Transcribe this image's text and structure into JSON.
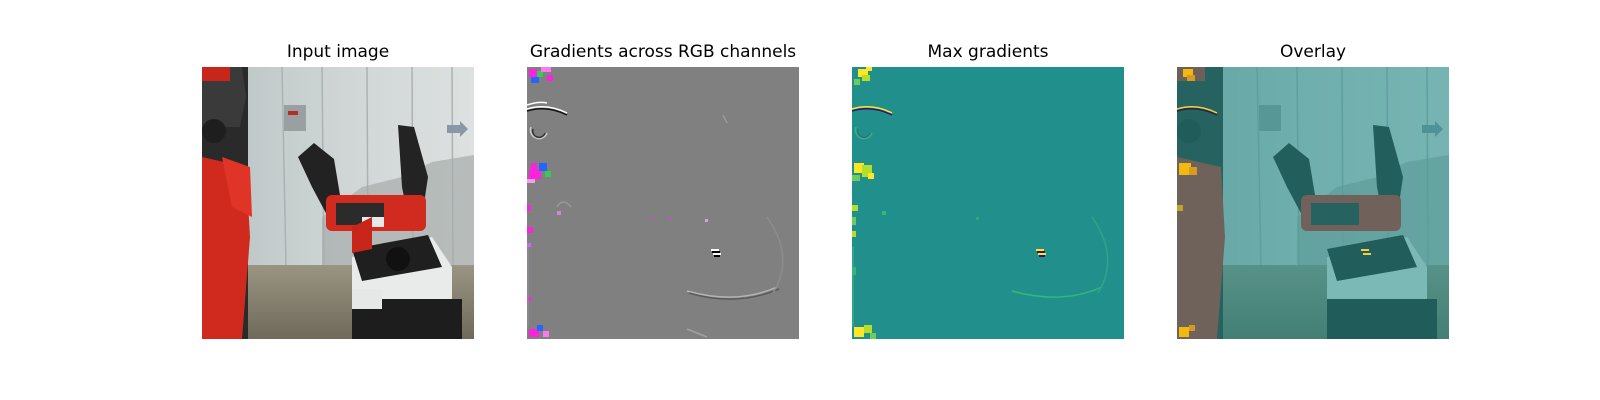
{
  "figure": {
    "panels": [
      {
        "title": "Input image",
        "image_content": "robot-arm-photo"
      },
      {
        "title": "Gradients across RGB channels",
        "image_content": "rgb-gradient-map"
      },
      {
        "title": "Max gradients",
        "image_content": "max-gradient-heatmap"
      },
      {
        "title": "Overlay",
        "image_content": "gradient-overlay-photo"
      }
    ],
    "colors": {
      "robot_red": "#d42a1e",
      "robot_dark": "#2a2a2a",
      "background_gray": "#c9cfcf",
      "floor": "#8d8775",
      "gradient_gray": "#808080",
      "heatmap_teal": "#21908c",
      "heatmap_yellow": "#fde725",
      "overlay_teal": "#4aa8a6",
      "magenta": "#ff22dd",
      "green": "#33cc55",
      "blue": "#2266ff"
    }
  }
}
